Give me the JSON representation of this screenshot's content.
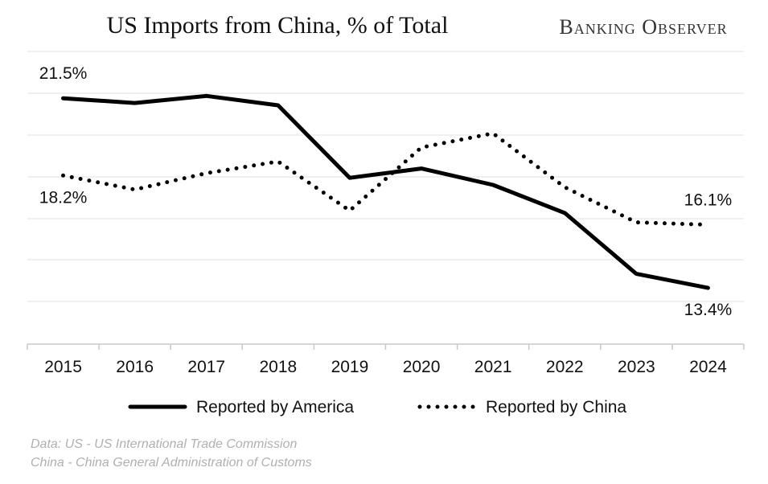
{
  "header": {
    "title": "US Imports from China, % of Total",
    "brand": "Banking Observer"
  },
  "source": {
    "line1": "Data: US - US International Trade Commission",
    "line2": "China - China General Administration of Customs"
  },
  "chart_data": {
    "type": "line",
    "title": "US Imports from China, % of Total",
    "xlabel": "",
    "ylabel": "",
    "x": [
      "2015",
      "2016",
      "2017",
      "2018",
      "2019",
      "2020",
      "2021",
      "2022",
      "2023",
      "2024"
    ],
    "ylim": [
      11.0,
      23.5
    ],
    "grid": true,
    "legend_position": "bottom",
    "series": [
      {
        "name": "Reported by America",
        "style": "solid",
        "color": "#000000",
        "values": [
          21.5,
          21.3,
          21.6,
          21.2,
          18.1,
          18.5,
          17.8,
          16.6,
          14.0,
          13.4
        ]
      },
      {
        "name": "Reported by China",
        "style": "dotted",
        "color": "#000000",
        "values": [
          18.2,
          17.6,
          18.3,
          18.8,
          16.7,
          19.4,
          20.0,
          17.7,
          16.2,
          16.1
        ]
      }
    ],
    "annotations": [
      {
        "text": "21.5%",
        "series": 0,
        "index": 0,
        "pos": "above"
      },
      {
        "text": "18.2%",
        "series": 1,
        "index": 0,
        "pos": "below"
      },
      {
        "text": "16.1%",
        "series": 1,
        "index": 9,
        "pos": "above"
      },
      {
        "text": "13.4%",
        "series": 0,
        "index": 9,
        "pos": "below"
      }
    ]
  }
}
